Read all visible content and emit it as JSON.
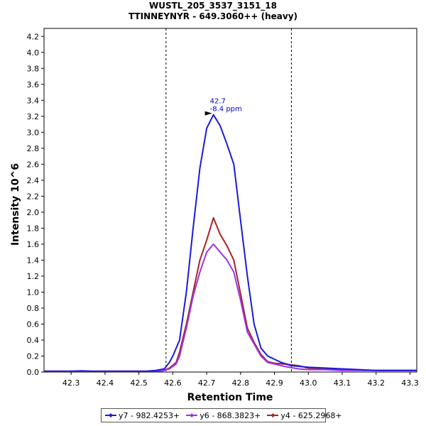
{
  "chart_data": {
    "type": "line",
    "title": "WUSTL_205_3537_3151_18",
    "subtitle": "TTINNEYNYR - 649.3060++ (heavy)",
    "xlabel": "Retention Time",
    "ylabel": "Intensity 10^6",
    "xlim": [
      42.22,
      43.32
    ],
    "ylim": [
      0,
      4.3
    ],
    "x_ticks": [
      "42.3",
      "42.4",
      "42.5",
      "42.6",
      "42.7",
      "42.8",
      "42.9",
      "43.0",
      "43.1",
      "43.2",
      "43.3"
    ],
    "y_ticks": [
      "0.0",
      "0.2",
      "0.4",
      "0.6",
      "0.8",
      "1.0",
      "1.2",
      "1.4",
      "1.6",
      "1.8",
      "2.0",
      "2.2",
      "2.4",
      "2.6",
      "2.8",
      "3.0",
      "3.2",
      "3.4",
      "3.6",
      "3.8",
      "4.0",
      "4.2"
    ],
    "grid": false,
    "legend_position": "bottom",
    "boundaries": [
      42.58,
      42.95
    ],
    "peak_annotation": {
      "x": 42.72,
      "y": 3.22,
      "lines": [
        "42.7",
        "-8.4 ppm"
      ],
      "color": "#0000cc"
    },
    "series": [
      {
        "name": "y7 - 982.4253+",
        "color": "#1a1adb",
        "points": [
          [
            42.22,
            0.01
          ],
          [
            42.3,
            0.01
          ],
          [
            42.33,
            0.015
          ],
          [
            42.36,
            0.01
          ],
          [
            42.45,
            0.01
          ],
          [
            42.52,
            0.01
          ],
          [
            42.55,
            0.02
          ],
          [
            42.575,
            0.04
          ],
          [
            42.59,
            0.12
          ],
          [
            42.6,
            0.2
          ],
          [
            42.62,
            0.4
          ],
          [
            42.64,
            1.0
          ],
          [
            42.66,
            1.8
          ],
          [
            42.68,
            2.55
          ],
          [
            42.7,
            3.05
          ],
          [
            42.72,
            3.22
          ],
          [
            42.74,
            3.08
          ],
          [
            42.76,
            2.85
          ],
          [
            42.78,
            2.6
          ],
          [
            42.8,
            1.9
          ],
          [
            42.82,
            1.2
          ],
          [
            42.84,
            0.6
          ],
          [
            42.86,
            0.3
          ],
          [
            42.88,
            0.2
          ],
          [
            42.9,
            0.16
          ],
          [
            42.92,
            0.12
          ],
          [
            42.95,
            0.08
          ],
          [
            43.0,
            0.06
          ],
          [
            43.05,
            0.05
          ],
          [
            43.1,
            0.04
          ],
          [
            43.2,
            0.02
          ],
          [
            43.32,
            0.02
          ]
        ]
      },
      {
        "name": "y6 - 868.3823+",
        "color": "#9933ee",
        "points": [
          [
            42.22,
            0.01
          ],
          [
            42.3,
            0.01
          ],
          [
            42.33,
            0.012
          ],
          [
            42.36,
            0.01
          ],
          [
            42.45,
            0.01
          ],
          [
            42.52,
            0.01
          ],
          [
            42.57,
            0.015
          ],
          [
            42.59,
            0.04
          ],
          [
            42.61,
            0.1
          ],
          [
            42.62,
            0.2
          ],
          [
            42.64,
            0.55
          ],
          [
            42.66,
            0.95
          ],
          [
            42.68,
            1.25
          ],
          [
            42.7,
            1.5
          ],
          [
            42.72,
            1.6
          ],
          [
            42.74,
            1.5
          ],
          [
            42.76,
            1.4
          ],
          [
            42.78,
            1.25
          ],
          [
            42.8,
            0.9
          ],
          [
            42.82,
            0.5
          ],
          [
            42.84,
            0.35
          ],
          [
            42.86,
            0.2
          ],
          [
            42.88,
            0.12
          ],
          [
            42.9,
            0.1
          ],
          [
            42.93,
            0.07
          ],
          [
            42.97,
            0.04
          ],
          [
            43.0,
            0.03
          ],
          [
            43.05,
            0.03
          ],
          [
            43.1,
            0.02
          ],
          [
            43.2,
            0.02
          ],
          [
            43.32,
            0.02
          ]
        ]
      },
      {
        "name": "y4 - 625.2968+",
        "color": "#aa2222",
        "points": [
          [
            42.22,
            0.01
          ],
          [
            42.3,
            0.01
          ],
          [
            42.33,
            0.012
          ],
          [
            42.36,
            0.01
          ],
          [
            42.45,
            0.01
          ],
          [
            42.52,
            0.01
          ],
          [
            42.57,
            0.015
          ],
          [
            42.59,
            0.05
          ],
          [
            42.61,
            0.12
          ],
          [
            42.62,
            0.25
          ],
          [
            42.64,
            0.6
          ],
          [
            42.66,
            1.0
          ],
          [
            42.68,
            1.4
          ],
          [
            42.7,
            1.65
          ],
          [
            42.72,
            1.93
          ],
          [
            42.74,
            1.72
          ],
          [
            42.76,
            1.58
          ],
          [
            42.78,
            1.4
          ],
          [
            42.8,
            0.98
          ],
          [
            42.82,
            0.55
          ],
          [
            42.84,
            0.37
          ],
          [
            42.86,
            0.22
          ],
          [
            42.88,
            0.13
          ],
          [
            42.9,
            0.11
          ],
          [
            42.93,
            0.1
          ],
          [
            42.97,
            0.08
          ],
          [
            43.0,
            0.05
          ],
          [
            43.05,
            0.04
          ],
          [
            43.1,
            0.03
          ],
          [
            43.2,
            0.02
          ],
          [
            43.32,
            0.02
          ]
        ]
      }
    ]
  }
}
